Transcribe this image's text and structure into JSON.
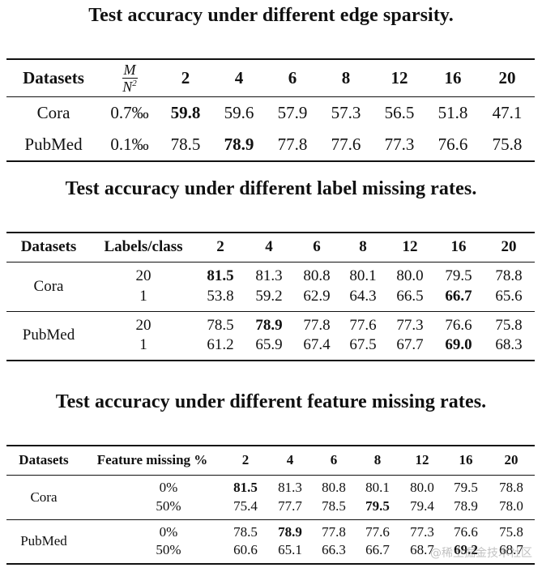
{
  "captions": {
    "t1": "Test accuracy under different edge sparsity.",
    "t2": "Test accuracy under different label missing rates.",
    "t3": "Test accuracy under different feature missing rates."
  },
  "table1": {
    "header": {
      "datasets": "Datasets",
      "ratio_num": "M",
      "ratio_den": "N",
      "ratio_sup": "2",
      "cols": [
        "2",
        "4",
        "6",
        "8",
        "12",
        "16",
        "20"
      ]
    },
    "rows": [
      {
        "name": "Cora",
        "ratio": "0.7‰",
        "values": [
          "59.8",
          "59.6",
          "57.9",
          "57.3",
          "56.5",
          "51.8",
          "47.1"
        ],
        "bold": [
          0
        ]
      },
      {
        "name": "PubMed",
        "ratio": "0.1‰",
        "values": [
          "78.5",
          "78.9",
          "77.8",
          "77.6",
          "77.3",
          "76.6",
          "75.8"
        ],
        "bold": [
          1
        ]
      }
    ]
  },
  "table2": {
    "header": {
      "datasets": "Datasets",
      "param": "Labels/class",
      "cols": [
        "2",
        "4",
        "6",
        "8",
        "12",
        "16",
        "20"
      ]
    },
    "groups": [
      {
        "name": "Cora",
        "params": [
          "20",
          "1"
        ],
        "rows": [
          {
            "values": [
              "81.5",
              "81.3",
              "80.8",
              "80.1",
              "80.0",
              "79.5",
              "78.8"
            ],
            "bold": [
              0
            ]
          },
          {
            "values": [
              "53.8",
              "59.2",
              "62.9",
              "64.3",
              "66.5",
              "66.7",
              "65.6"
            ],
            "bold": [
              5
            ]
          }
        ]
      },
      {
        "name": "PubMed",
        "params": [
          "20",
          "1"
        ],
        "rows": [
          {
            "values": [
              "78.5",
              "78.9",
              "77.8",
              "77.6",
              "77.3",
              "76.6",
              "75.8"
            ],
            "bold": [
              1
            ]
          },
          {
            "values": [
              "61.2",
              "65.9",
              "67.4",
              "67.5",
              "67.7",
              "69.0",
              "68.3"
            ],
            "bold": [
              5
            ]
          }
        ]
      }
    ]
  },
  "table3": {
    "header": {
      "datasets": "Datasets",
      "param": "Feature missing %",
      "cols": [
        "2",
        "4",
        "6",
        "8",
        "12",
        "16",
        "20"
      ]
    },
    "groups": [
      {
        "name": "Cora",
        "params": [
          "0%",
          "50%"
        ],
        "rows": [
          {
            "values": [
              "81.5",
              "81.3",
              "80.8",
              "80.1",
              "80.0",
              "79.5",
              "78.8"
            ],
            "bold": [
              0
            ]
          },
          {
            "values": [
              "75.4",
              "77.7",
              "78.5",
              "79.5",
              "79.4",
              "78.9",
              "78.0"
            ],
            "bold": [
              3
            ]
          }
        ]
      },
      {
        "name": "PubMed",
        "params": [
          "0%",
          "50%"
        ],
        "rows": [
          {
            "values": [
              "78.5",
              "78.9",
              "77.8",
              "77.6",
              "77.3",
              "76.6",
              "75.8"
            ],
            "bold": [
              1
            ]
          },
          {
            "values": [
              "60.6",
              "65.1",
              "66.3",
              "66.7",
              "68.7",
              "69.2",
              "68.7"
            ],
            "bold": [
              5
            ]
          }
        ]
      }
    ]
  },
  "watermark": "@稀土掘金技术社区"
}
